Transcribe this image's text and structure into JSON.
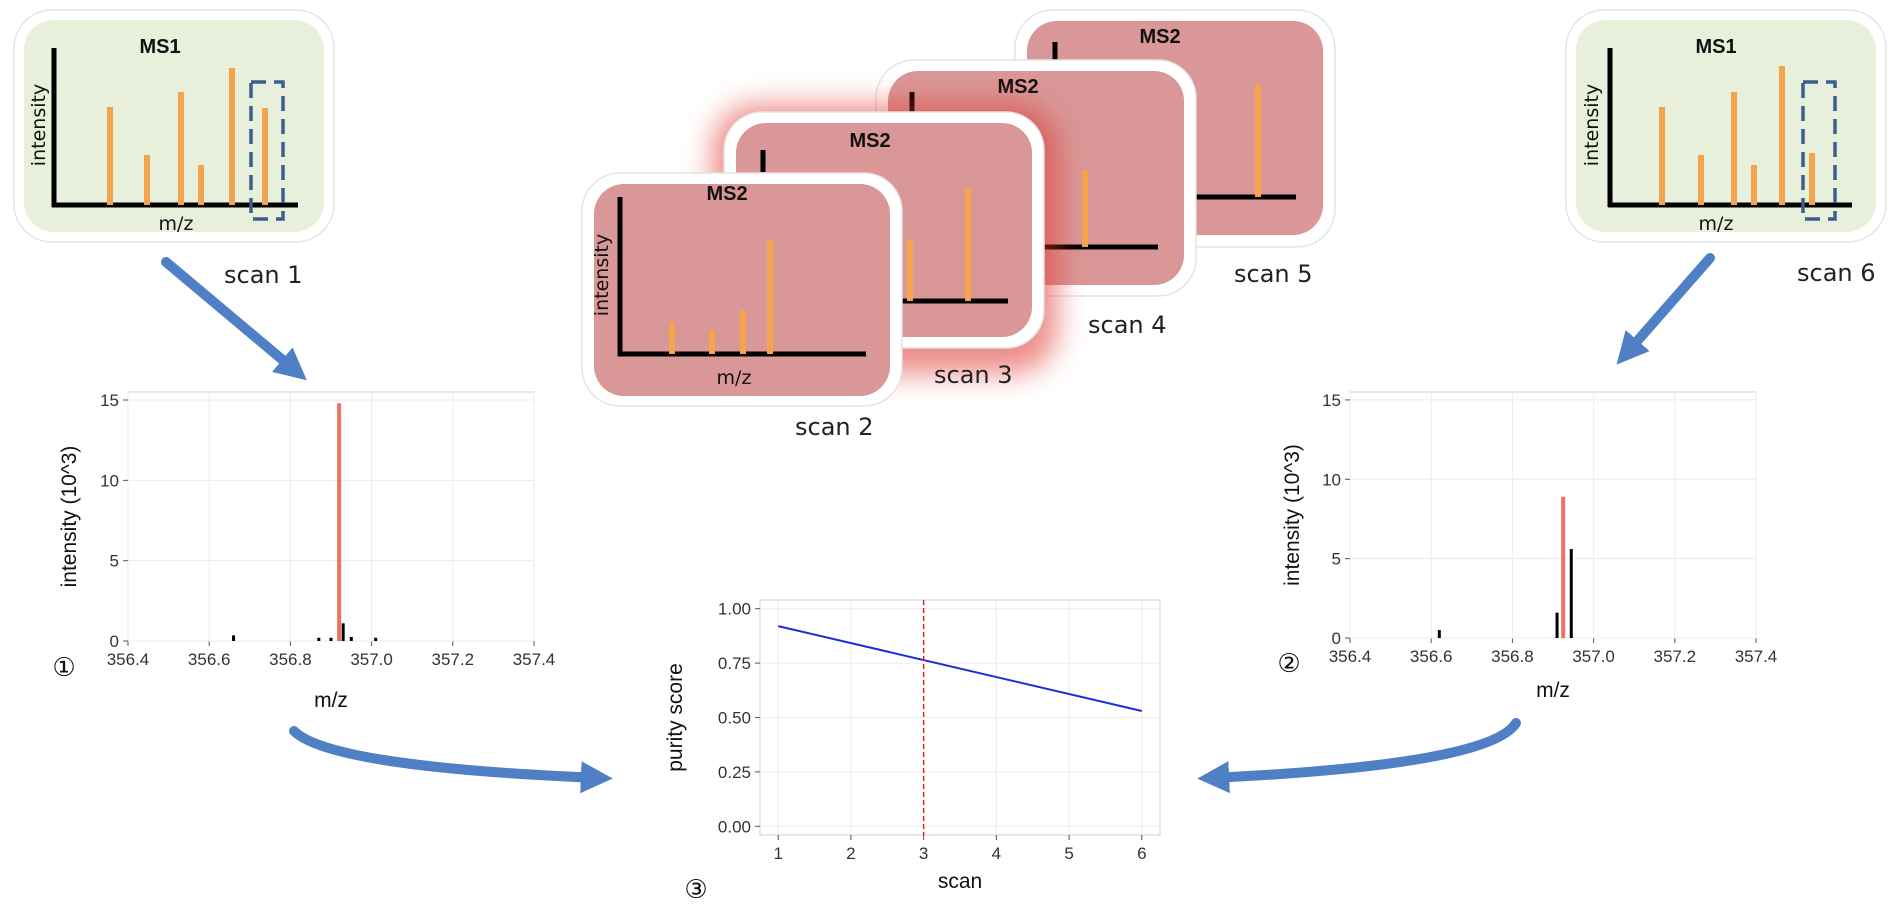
{
  "colors": {
    "ms1_fill": "#e8efda",
    "ms2_fill": "#d99797",
    "peak": "#f5a44c",
    "precursor": "#f07068",
    "isolation_box": "#3a5f8f",
    "arrow": "#4f7fc4",
    "purity_line": "#1a2fd6",
    "marker_line": "#e0261d"
  },
  "ms1_cards": [
    {
      "title": "MS1",
      "ylabel": "intensity",
      "xlabel": "m/z",
      "caption": "scan 1"
    },
    {
      "title": "MS1",
      "ylabel": "intensity",
      "xlabel": "m/z",
      "caption": "scan 6"
    }
  ],
  "ms2_cards": [
    {
      "title": "MS2",
      "caption": "scan 5"
    },
    {
      "title": "MS2",
      "caption": "scan 4"
    },
    {
      "title": "MS2",
      "caption": "scan 3"
    },
    {
      "title": "MS2",
      "ylabel": "intensity",
      "xlabel": "m/z",
      "caption": "scan 2"
    }
  ],
  "chart_data": [
    {
      "type": "bar",
      "marker": "①",
      "xlabel": "m/z",
      "ylabel": "intensity (10^3)",
      "xlim": [
        356.4,
        357.4
      ],
      "ylim": [
        0,
        15.5
      ],
      "xticks": [
        "356.4",
        "356.6",
        "356.8",
        "357.0",
        "357.2",
        "357.4"
      ],
      "yticks": [
        "0",
        "5",
        "10",
        "15"
      ],
      "grid": true,
      "peaks": [
        {
          "mz": 356.66,
          "intensity": 0.35,
          "highlight": false
        },
        {
          "mz": 356.87,
          "intensity": 0.2,
          "highlight": false
        },
        {
          "mz": 356.9,
          "intensity": 0.2,
          "highlight": false
        },
        {
          "mz": 356.92,
          "intensity": 14.8,
          "highlight": true
        },
        {
          "mz": 356.93,
          "intensity": 1.1,
          "highlight": false
        },
        {
          "mz": 356.95,
          "intensity": 0.25,
          "highlight": false
        },
        {
          "mz": 357.01,
          "intensity": 0.2,
          "highlight": false
        }
      ]
    },
    {
      "type": "bar",
      "marker": "②",
      "xlabel": "m/z",
      "ylabel": "intensity (10^3)",
      "xlim": [
        356.4,
        357.4
      ],
      "ylim": [
        0,
        15.5
      ],
      "xticks": [
        "356.4",
        "356.6",
        "356.8",
        "357.0",
        "357.2",
        "357.4"
      ],
      "yticks": [
        "0",
        "5",
        "10",
        "15"
      ],
      "grid": true,
      "peaks": [
        {
          "mz": 356.62,
          "intensity": 0.5,
          "highlight": false
        },
        {
          "mz": 356.91,
          "intensity": 1.6,
          "highlight": false
        },
        {
          "mz": 356.925,
          "intensity": 8.9,
          "highlight": true
        },
        {
          "mz": 356.945,
          "intensity": 5.6,
          "highlight": false
        }
      ]
    },
    {
      "type": "line",
      "marker": "③",
      "xlabel": "scan",
      "ylabel": "purity score",
      "xlim": [
        0.75,
        6.25
      ],
      "ylim": [
        -0.04,
        1.04
      ],
      "xticks": [
        "1",
        "2",
        "3",
        "4",
        "5",
        "6"
      ],
      "yticks": [
        "0.00",
        "0.25",
        "0.50",
        "0.75",
        "1.00"
      ],
      "grid": true,
      "series": [
        {
          "x": [
            1,
            6
          ],
          "y": [
            0.92,
            0.53
          ]
        }
      ],
      "vline": 3
    }
  ]
}
